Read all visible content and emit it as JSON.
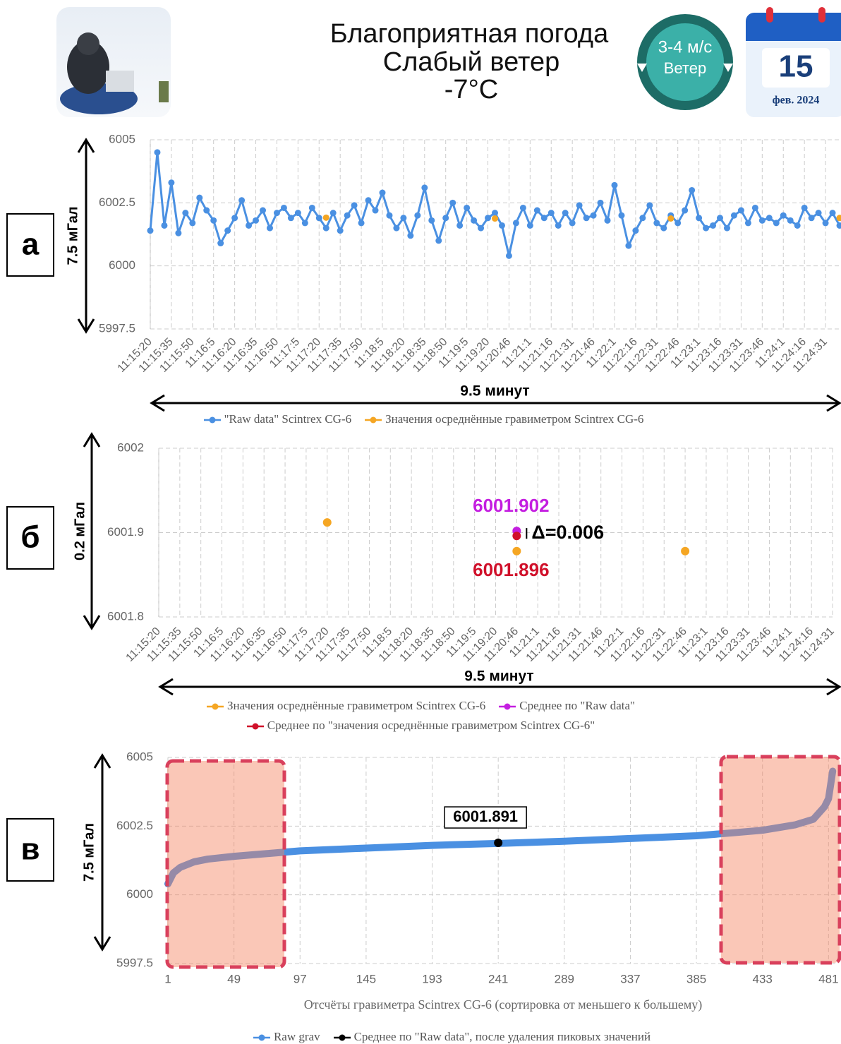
{
  "header": {
    "title_lines": [
      "Благоприятная погода",
      "Слабый ветер",
      "-7°C"
    ],
    "wind_speed": "3-4 м/с",
    "wind_label": "Ветер",
    "day": "15",
    "month_year": "фев. 2024"
  },
  "chart_data": [
    {
      "type": "line",
      "panel_label": "а",
      "span_y_label": "7.5 мГал",
      "span_x_label": "9.5 минут",
      "categories": [
        "11:15:20",
        null,
        null,
        "11:15:35",
        null,
        null,
        "11:15:50",
        null,
        null,
        "11:16:5",
        null,
        null,
        "11:16:20",
        null,
        null,
        "11:16:35",
        null,
        null,
        "11:16:50",
        null,
        null,
        "11:17:5",
        null,
        null,
        "11:17:20",
        null,
        null,
        "11:17:35",
        null,
        null,
        "11:17:50",
        null,
        null,
        "11:18:5",
        null,
        null,
        "11:18:20",
        null,
        null,
        "11:18:35",
        null,
        null,
        "11:18:50",
        null,
        null,
        "11:19:5",
        null,
        null,
        "11:19:20",
        null,
        null,
        "11:20:46",
        null,
        null,
        "11:21:1",
        null,
        null,
        "11:21:16",
        null,
        null,
        "11:21:31",
        null,
        null,
        "11:21:46",
        null,
        null,
        "11:22:1",
        null,
        null,
        "11:22:16",
        null,
        null,
        "11:22:31",
        null,
        null,
        "11:22:46",
        null,
        null,
        "11:23:1",
        null,
        null,
        "11:23:16",
        null,
        null,
        "11:23:31",
        null,
        null,
        "11:23:46",
        null,
        null,
        "11:24:1",
        null,
        null,
        "11:24:16",
        null,
        null,
        "11:24:31",
        null,
        null
      ],
      "series": [
        {
          "name": "\"Raw data\" Scintrex CG-6",
          "color": "#4a90e2",
          "values": [
            6001.4,
            6004.5,
            6001.6,
            6003.3,
            6001.3,
            6002.1,
            6001.7,
            6002.7,
            6002.2,
            6001.8,
            6000.9,
            6001.4,
            6001.9,
            6002.6,
            6001.6,
            6001.8,
            6002.2,
            6001.5,
            6002.1,
            6002.3,
            6001.9,
            6002.1,
            6001.7,
            6002.3,
            6001.9,
            6001.5,
            6002.1,
            6001.4,
            6002.0,
            6002.4,
            6001.7,
            6002.6,
            6002.2,
            6002.9,
            6002.0,
            6001.5,
            6001.9,
            6001.2,
            6002.0,
            6003.1,
            6001.8,
            6001.0,
            6001.9,
            6002.5,
            6001.6,
            6002.3,
            6001.8,
            6001.5,
            6001.9,
            6002.1,
            6001.6,
            6000.4,
            6001.7,
            6002.3,
            6001.6,
            6002.2,
            6001.9,
            6002.1,
            6001.6,
            6002.1,
            6001.7,
            6002.4,
            6001.9,
            6002.0,
            6002.5,
            6001.8,
            6003.2,
            6002.0,
            6000.8,
            6001.4,
            6001.9,
            6002.4,
            6001.7,
            6001.5,
            6002.0,
            6001.7,
            6002.2,
            6003.0,
            6001.9,
            6001.5,
            6001.6,
            6001.9,
            6001.5,
            6002.0,
            6002.2,
            6001.7,
            6002.3,
            6001.8,
            6001.9,
            6001.7,
            6002.0,
            6001.8,
            6001.6,
            6002.3,
            6001.9,
            6002.1,
            6001.7,
            6002.1,
            6001.6
          ]
        },
        {
          "name": "Значения осреднённые гравиметром Scintrex CG-6",
          "color": "#f5a623",
          "show_line": false,
          "values": [
            null,
            null,
            null,
            null,
            null,
            null,
            null,
            null,
            null,
            null,
            null,
            null,
            null,
            null,
            null,
            null,
            null,
            null,
            null,
            null,
            null,
            null,
            null,
            null,
            null,
            6001.912,
            null,
            null,
            null,
            null,
            null,
            null,
            null,
            null,
            null,
            null,
            null,
            null,
            null,
            null,
            null,
            null,
            null,
            null,
            null,
            null,
            null,
            null,
            null,
            6001.878,
            null,
            null,
            null,
            null,
            null,
            null,
            null,
            null,
            null,
            null,
            null,
            null,
            null,
            null,
            null,
            null,
            null,
            null,
            null,
            null,
            null,
            null,
            null,
            null,
            6001.878,
            null,
            null,
            null,
            null,
            null,
            null,
            null,
            null,
            null,
            null,
            null,
            null,
            null,
            null,
            null,
            null,
            null,
            null,
            null,
            null,
            null,
            null,
            null,
            6001.9
          ]
        }
      ],
      "ylim": [
        5997.5,
        6005
      ],
      "yticks": [
        5997.5,
        6000,
        6002.5,
        6005
      ],
      "grid": true
    },
    {
      "type": "scatter",
      "panel_label": "б",
      "span_y_label": "0.2 мГал",
      "span_x_label": "9.5 минут",
      "annotation": "Δ=0.006",
      "categories": [
        "11:15:20",
        "11:15:35",
        "11:15:50",
        "11:16:5",
        "11:16:20",
        "11:16:35",
        "11:16:50",
        "11:17:5",
        "11:17:20",
        "11:17:35",
        "11:17:50",
        "11:18:5",
        "11:18:20",
        "11:18:35",
        "11:18:50",
        "11:19:5",
        "11:19:20",
        "11:20:46",
        "11:21:1",
        "11:21:16",
        "11:21:31",
        "11:21:46",
        "11:22:1",
        "11:22:16",
        "11:22:31",
        "11:22:46",
        "11:23:1",
        "11:23:16",
        "11:23:31",
        "11:23:46",
        "11:24:1",
        "11:24:16",
        "11:24:31"
      ],
      "series": [
        {
          "name": "Значения осреднённые гравиметром Scintrex CG-6",
          "color": "#f5a623",
          "values": [
            null,
            null,
            null,
            null,
            null,
            null,
            null,
            null,
            6001.912,
            null,
            null,
            null,
            null,
            null,
            null,
            null,
            null,
            6001.878,
            null,
            null,
            null,
            null,
            null,
            null,
            null,
            6001.878,
            null,
            null,
            null,
            null,
            null,
            null,
            null
          ]
        },
        {
          "name": "Среднее по \"Raw data\"",
          "color": "#c41ee0",
          "values": [
            null,
            null,
            null,
            null,
            null,
            null,
            null,
            null,
            null,
            null,
            null,
            null,
            null,
            null,
            null,
            null,
            null,
            6001.902,
            null,
            null,
            null,
            null,
            null,
            null,
            null,
            null,
            null,
            null,
            null,
            null,
            null,
            null,
            null
          ],
          "value_labels": [
            null,
            null,
            null,
            null,
            null,
            null,
            null,
            null,
            null,
            null,
            null,
            null,
            null,
            null,
            null,
            null,
            null,
            "6001.902",
            null,
            null,
            null,
            null,
            null,
            null,
            null,
            null,
            null,
            null,
            null,
            null,
            null,
            null,
            null
          ]
        },
        {
          "name": "Среднее по \"значения осреднённые гравиметром Scintrex CG-6\"",
          "color": "#d0102a",
          "values": [
            null,
            null,
            null,
            null,
            null,
            null,
            null,
            null,
            null,
            null,
            null,
            null,
            null,
            null,
            null,
            null,
            null,
            6001.896,
            null,
            null,
            null,
            null,
            null,
            null,
            null,
            null,
            null,
            null,
            null,
            null,
            null,
            null,
            null
          ],
          "value_labels": [
            null,
            null,
            null,
            null,
            null,
            null,
            null,
            null,
            null,
            null,
            null,
            null,
            null,
            null,
            null,
            null,
            null,
            "6001.896",
            null,
            null,
            null,
            null,
            null,
            null,
            null,
            null,
            null,
            null,
            null,
            null,
            null,
            null,
            null
          ]
        }
      ],
      "ylim": [
        6001.8,
        6002
      ],
      "yticks": [
        6001.8,
        6001.9,
        6002
      ],
      "grid": true
    },
    {
      "type": "line",
      "panel_label": "в",
      "span_y_label": "7.5 мГал",
      "x_label": "Отсчёты гравиметра Scintrex CG-6 (сортировка от меньшего к большему)",
      "x": [
        1,
        5,
        10,
        20,
        30,
        49,
        73,
        97,
        145,
        193,
        241,
        289,
        337,
        385,
        410,
        433,
        457,
        470,
        478,
        481,
        484
      ],
      "series": [
        {
          "name": "Raw grav",
          "color": "#4a90e2",
          "show_markers": false,
          "values": [
            6000.4,
            6000.8,
            6001.0,
            6001.2,
            6001.3,
            6001.4,
            6001.5,
            6001.6,
            6001.7,
            6001.8,
            6001.87,
            6001.95,
            6002.05,
            6002.15,
            6002.25,
            6002.35,
            6002.55,
            6002.75,
            6003.2,
            6003.5,
            6004.5
          ]
        },
        {
          "name": "Среднее по \"Raw data\", после удаления пиковых значений",
          "color": "#000000",
          "show_line": false,
          "values": [
            null,
            null,
            null,
            null,
            null,
            null,
            null,
            null,
            null,
            null,
            6001.891,
            null,
            null,
            null,
            null,
            null,
            null,
            null,
            null,
            null,
            null
          ],
          "value_labels": [
            null,
            null,
            null,
            null,
            null,
            null,
            null,
            null,
            null,
            null,
            "6001.891",
            null,
            null,
            null,
            null,
            null,
            null,
            null,
            null,
            null,
            null
          ]
        }
      ],
      "xlim": [
        1,
        488
      ],
      "xticks": [
        1,
        49,
        97,
        145,
        193,
        241,
        289,
        337,
        385,
        433,
        481
      ],
      "ylim": [
        5997.5,
        6005
      ],
      "yticks": [
        5997.5,
        6000,
        6002.5,
        6005
      ],
      "grid": true
    }
  ]
}
